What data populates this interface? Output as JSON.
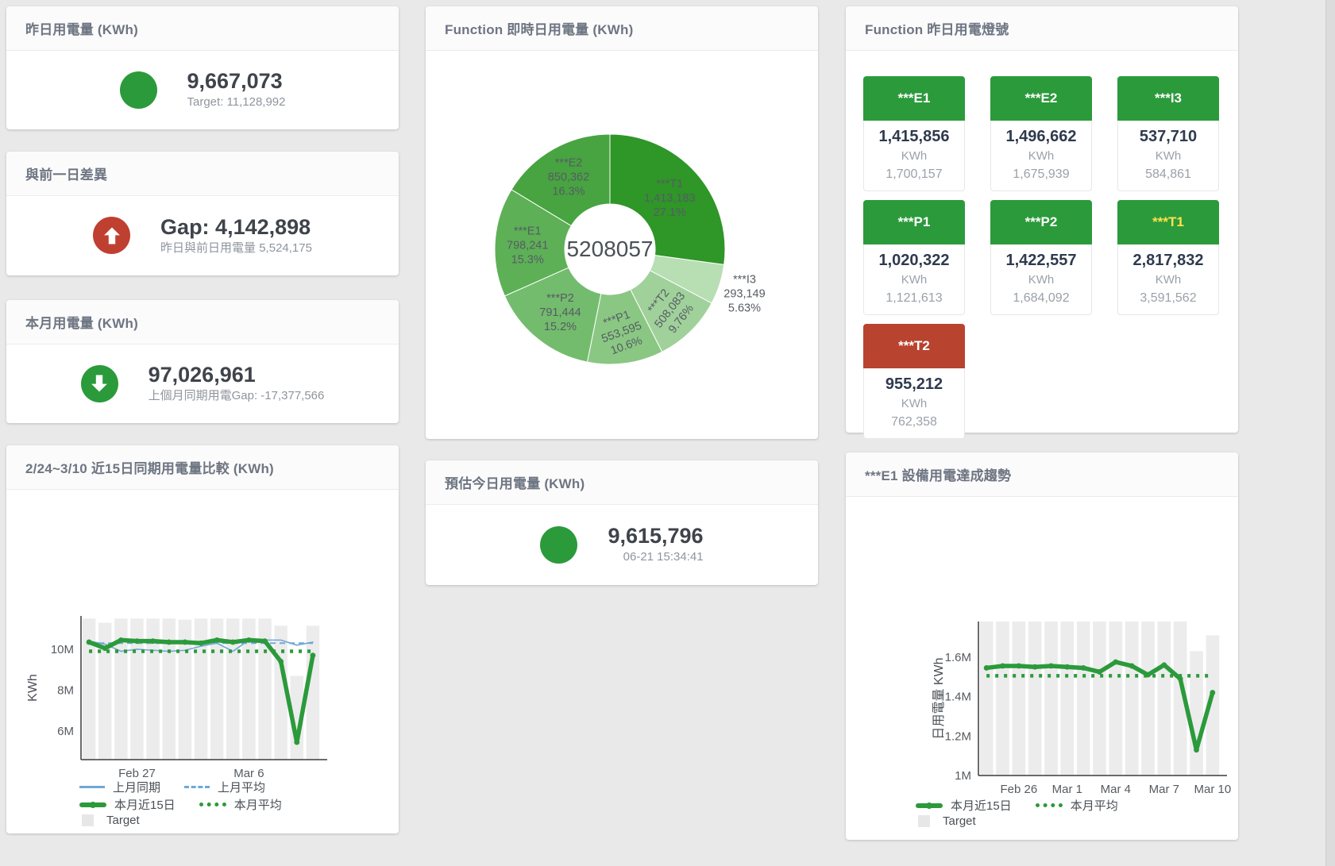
{
  "colors": {
    "green": "#2b9a3b",
    "red": "#bf4030",
    "tile_red": "#b8432f",
    "yellow_label": "#ffe14d",
    "blue_line": "#6fa8d6",
    "bar_gray": "#ececec",
    "donut_greens": [
      "#2f9628",
      "#b8deb4",
      "#a0d19a",
      "#8ac783",
      "#73bc6d",
      "#5db056",
      "#47a440"
    ]
  },
  "cards": {
    "yesterday": {
      "title": "昨日用電量 (KWh)",
      "value": "9,667,073",
      "subtext": "Target: 11,128,992"
    },
    "gap_prev_day": {
      "title": "與前一日差異",
      "value": "Gap: 4,142,898",
      "subtext": "昨日與前日用電量 5,524,175"
    },
    "month": {
      "title": "本月用電量 (KWh)",
      "value": "97,026,961",
      "subtext": "上個月同期用電Gap: -17,377,566"
    },
    "estimate_today": {
      "title": "預估今日用電量 (KWh)",
      "value": "9,615,796",
      "subtext": "06-21 15:34:41"
    },
    "donut": {
      "title": "Function 即時日用電量 (KWh)"
    },
    "lights": {
      "title": "Function 昨日用電燈號"
    },
    "compare15": {
      "title": "2/24~3/10 近15日同期用電量比較 (KWh)"
    },
    "e1trend": {
      "title": "***E1 設備用電達成趨勢"
    }
  },
  "lights_tiles": [
    {
      "label": "***E1",
      "value": "1,415,856",
      "unit": "KWh",
      "target": "1,700,157",
      "status": "green",
      "label_color": "white"
    },
    {
      "label": "***E2",
      "value": "1,496,662",
      "unit": "KWh",
      "target": "1,675,939",
      "status": "green",
      "label_color": "white"
    },
    {
      "label": "***I3",
      "value": "537,710",
      "unit": "KWh",
      "target": "584,861",
      "status": "green",
      "label_color": "white"
    },
    {
      "label": "***P1",
      "value": "1,020,322",
      "unit": "KWh",
      "target": "1,121,613",
      "status": "green",
      "label_color": "white"
    },
    {
      "label": "***P2",
      "value": "1,422,557",
      "unit": "KWh",
      "target": "1,684,092",
      "status": "green",
      "label_color": "white"
    },
    {
      "label": "***T1",
      "value": "2,817,832",
      "unit": "KWh",
      "target": "3,591,562",
      "status": "green",
      "label_color": "yellow"
    },
    {
      "label": "***T2",
      "value": "955,212",
      "unit": "KWh",
      "target": "762,358",
      "status": "red",
      "label_color": "white"
    }
  ],
  "chart_data": [
    {
      "type": "pie",
      "title": "Function 即時日用電量 (KWh)",
      "center_total": "5208057",
      "slices": [
        {
          "name": "***T1",
          "value": 1413183,
          "value_label": "1,413,183",
          "pct": "27.1%"
        },
        {
          "name": "***I3",
          "value": 293149,
          "value_label": "293,149",
          "pct": "5.63%"
        },
        {
          "name": "***T2",
          "value": 508083,
          "value_label": "508,083",
          "pct": "9.76%"
        },
        {
          "name": "***P1",
          "value": 553595,
          "value_label": "553,595",
          "pct": "10.6%"
        },
        {
          "name": "***P2",
          "value": 791444,
          "value_label": "791,444",
          "pct": "15.2%"
        },
        {
          "name": "***E1",
          "value": 798241,
          "value_label": "798,241",
          "pct": "15.3%"
        },
        {
          "name": "***E2",
          "value": 850362,
          "value_label": "850,362",
          "pct": "16.3%"
        }
      ],
      "legend_position": "none",
      "grid": false
    },
    {
      "type": "line",
      "title": "2/24~3/10 近15日同期用電量比較 (KWh)",
      "ylabel": "KWh",
      "ylim": [
        4.6,
        11.63
      ],
      "yticks": [
        {
          "v": 6,
          "label": "6M"
        },
        {
          "v": 8,
          "label": "8M"
        },
        {
          "v": 10,
          "label": "10M"
        }
      ],
      "xticks": [
        {
          "index": 3,
          "label": "Feb 27"
        },
        {
          "index": 10,
          "label": "Mar 6"
        }
      ],
      "target_bars": [
        11.5,
        11.3,
        11.5,
        11.5,
        11.5,
        11.5,
        11.45,
        11.5,
        11.5,
        11.5,
        11.5,
        11.5,
        11.15,
        8.7,
        11.15
      ],
      "series": [
        {
          "name": "上月同期",
          "style": "blue-solid",
          "values": [
            10.4,
            10.25,
            9.9,
            10.0,
            9.95,
            9.9,
            9.95,
            10.15,
            10.3,
            9.9,
            10.45,
            10.45,
            10.45,
            10.2,
            10.35
          ]
        },
        {
          "name": "上月平均",
          "style": "blue-dashed",
          "constant": 10.3
        },
        {
          "name": "本月近15日",
          "style": "green-thick",
          "values": [
            10.35,
            10.05,
            10.45,
            10.4,
            10.4,
            10.35,
            10.35,
            10.3,
            10.45,
            10.35,
            10.45,
            10.4,
            9.4,
            5.45,
            9.7
          ]
        },
        {
          "name": "本月平均",
          "style": "green-dotted",
          "constant": 9.9
        }
      ],
      "legend": [
        "上月同期",
        "上月平均",
        "本月近15日",
        "本月平均",
        "Target"
      ],
      "legend_target_label": "Target",
      "grid": false,
      "legend_position": "bottom-left"
    },
    {
      "type": "line",
      "title": "***E1 設備用電達成趨勢",
      "ylabel": "日用電量 KWh",
      "ylim": [
        1.0,
        1.78
      ],
      "yticks": [
        {
          "v": 1,
          "label": "1M"
        },
        {
          "v": 1.2,
          "label": "1.2M"
        },
        {
          "v": 1.4,
          "label": "1.4M"
        },
        {
          "v": 1.6,
          "label": "1.6M"
        }
      ],
      "xticks": [
        {
          "index": 2,
          "label": "Feb 26"
        },
        {
          "index": 5,
          "label": "Mar 1"
        },
        {
          "index": 8,
          "label": "Mar 4"
        },
        {
          "index": 11,
          "label": "Mar 7"
        },
        {
          "index": 14,
          "label": "Mar 10"
        }
      ],
      "target_bars": [
        1.78,
        1.78,
        1.78,
        1.78,
        1.78,
        1.78,
        1.78,
        1.78,
        1.78,
        1.78,
        1.78,
        1.78,
        1.78,
        1.63,
        1.71
      ],
      "series": [
        {
          "name": "本月近15日",
          "style": "green-thick",
          "values": [
            1.545,
            1.555,
            1.555,
            1.55,
            1.555,
            1.55,
            1.545,
            1.525,
            1.575,
            1.555,
            1.51,
            1.56,
            1.49,
            1.13,
            1.42
          ]
        },
        {
          "name": "本月平均",
          "style": "green-dotted",
          "constant": 1.505
        }
      ],
      "legend": [
        "本月近15日",
        "本月平均",
        "Target"
      ],
      "legend_target_label": "Target",
      "grid": false,
      "legend_position": "bottom-left"
    }
  ]
}
